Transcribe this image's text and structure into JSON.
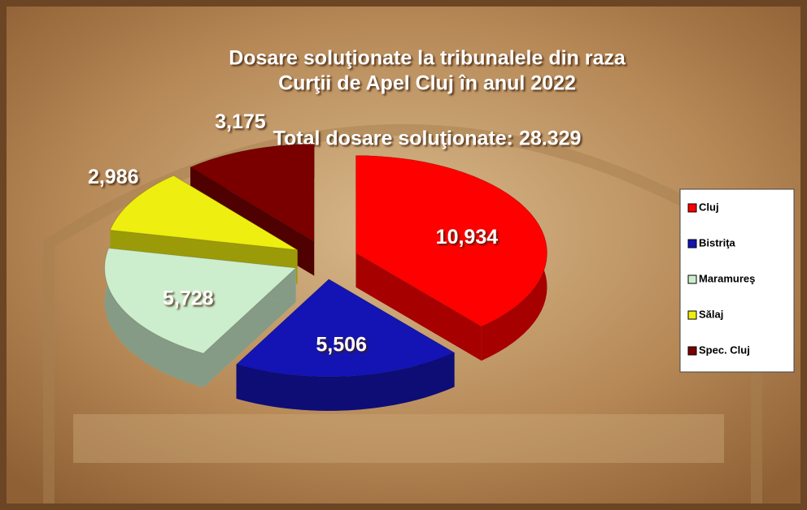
{
  "chart_data": {
    "type": "pie",
    "title": [
      "Dosare soluţionate la tribunalele din raza",
      "Curţii de Apel Cluj în anul 2022"
    ],
    "subtitle": "Total dosare soluţionate: 28.329",
    "categories": [
      "Cluj",
      "Bistriţa",
      "Maramureş",
      "Sălaj",
      "Spec. Cluj"
    ],
    "values": [
      10934,
      5506,
      5728,
      2986,
      3175
    ],
    "value_labels": [
      "10,934",
      "5,506",
      "5,728",
      "2,986",
      "3,175"
    ],
    "colors": [
      "#ff0000",
      "#1414b4",
      "#cdeecd",
      "#eeee10",
      "#7a0000"
    ],
    "legend": "right"
  }
}
